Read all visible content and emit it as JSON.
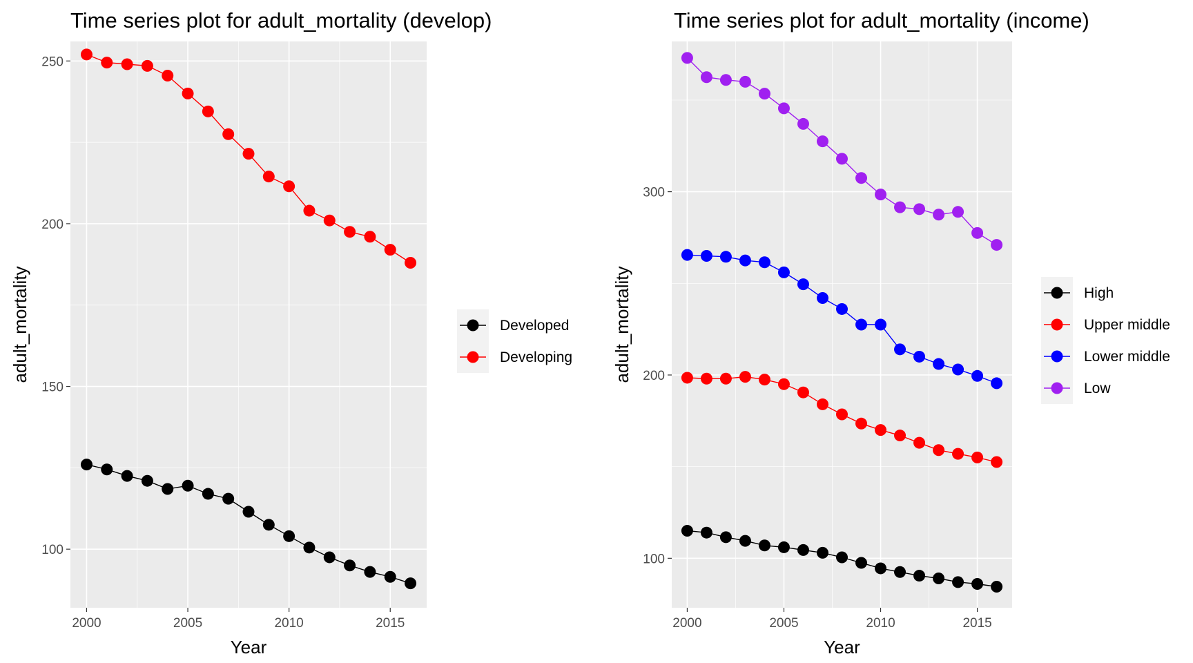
{
  "chart_data": [
    {
      "type": "line",
      "title": "Time series plot for adult_mortality (develop)",
      "xlabel": "Year",
      "ylabel": "adult_mortality",
      "xlim": [
        1999.2,
        2016.8
      ],
      "ylim": [
        82,
        256
      ],
      "xticks": [
        2000,
        2005,
        2010,
        2015
      ],
      "yticks": [
        100,
        150,
        200,
        250
      ],
      "grid": true,
      "legend": "right",
      "x": [
        2000,
        2001,
        2002,
        2003,
        2004,
        2005,
        2006,
        2007,
        2008,
        2009,
        2010,
        2011,
        2012,
        2013,
        2014,
        2015,
        2016
      ],
      "series": [
        {
          "name": "Developed",
          "color": "#000000",
          "values": [
            126,
            124.5,
            122.5,
            121,
            118.5,
            119.5,
            117,
            115.5,
            111.5,
            107.5,
            104,
            100.5,
            97.5,
            95,
            93,
            91.5,
            89.5
          ]
        },
        {
          "name": "Developing",
          "color": "#ff0000",
          "values": [
            252,
            249.5,
            249,
            248.5,
            245.5,
            240,
            234.5,
            227.5,
            221.5,
            214.5,
            211.5,
            204,
            201,
            197.5,
            196,
            192,
            188
          ]
        }
      ]
    },
    {
      "type": "line",
      "title": "Time series plot for adult_mortality (income)",
      "xlabel": "Year",
      "ylabel": "adult_mortality",
      "xlim": [
        1999.2,
        2016.8
      ],
      "ylim": [
        73,
        382
      ],
      "xticks": [
        2000,
        2005,
        2010,
        2015
      ],
      "yticks": [
        100,
        200,
        300
      ],
      "grid": true,
      "legend": "right",
      "x": [
        2000,
        2001,
        2002,
        2003,
        2004,
        2005,
        2006,
        2007,
        2008,
        2009,
        2010,
        2011,
        2012,
        2013,
        2014,
        2015,
        2016
      ],
      "series": [
        {
          "name": "High",
          "color": "#000000",
          "values": [
            115,
            114,
            111.5,
            109.5,
            107,
            106,
            104.5,
            103,
            100.5,
            97.5,
            94.5,
            92.5,
            90.5,
            89,
            87,
            86,
            84.5
          ]
        },
        {
          "name": "Upper middle",
          "color": "#ff0000",
          "values": [
            198.5,
            198,
            198,
            199,
            197.5,
            195,
            190.5,
            184,
            178.5,
            173.5,
            170,
            167,
            163,
            159,
            157,
            155,
            152.5
          ]
        },
        {
          "name": "Lower middle",
          "color": "#0000ff",
          "values": [
            265.5,
            265,
            264.5,
            262.5,
            261.5,
            256,
            249.5,
            242,
            236,
            227.5,
            227.5,
            214,
            210,
            206,
            203,
            199.5,
            195.5
          ]
        },
        {
          "name": "Low",
          "color": "#a020f0",
          "values": [
            373,
            362.5,
            361,
            360,
            353.5,
            345.5,
            337,
            327.5,
            318,
            307.5,
            298.5,
            291.5,
            290.5,
            287.5,
            289,
            277.5,
            271
          ]
        }
      ]
    }
  ]
}
